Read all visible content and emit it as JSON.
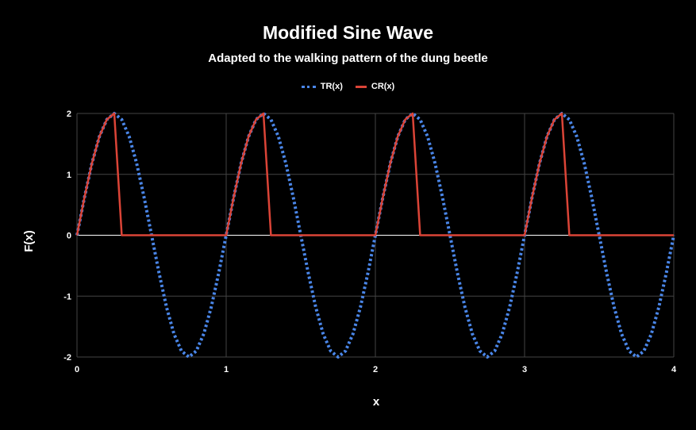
{
  "chart_data": {
    "type": "line",
    "title": "Modified Sine Wave",
    "subtitle": "Adapted to the walking pattern of the dung beetle",
    "xlabel": "x",
    "ylabel": "F(x)",
    "xlim": [
      0,
      4
    ],
    "ylim": [
      -2,
      2
    ],
    "x_ticks": [
      "0",
      "1",
      "2",
      "3",
      "4"
    ],
    "y_ticks": [
      "2",
      "1",
      "0",
      "-1",
      "-2"
    ],
    "grid": true,
    "legend_position": "top",
    "series": [
      {
        "name": "TR(x)",
        "style": "dotted",
        "color": "#4a86e8",
        "function": "2*sin(2*pi*x)",
        "x": [
          0,
          0.05,
          0.1,
          0.15,
          0.2,
          0.25,
          0.3,
          0.35,
          0.4,
          0.45,
          0.5,
          0.55,
          0.6,
          0.65,
          0.7,
          0.75,
          0.8,
          0.85,
          0.9,
          0.95,
          1.0,
          1.05,
          1.1,
          1.15,
          1.2,
          1.25,
          1.3,
          1.35,
          1.4,
          1.45,
          1.5,
          1.55,
          1.6,
          1.65,
          1.7,
          1.75,
          1.8,
          1.85,
          1.9,
          1.95,
          2.0,
          2.05,
          2.1,
          2.15,
          2.2,
          2.25,
          2.3,
          2.35,
          2.4,
          2.45,
          2.5,
          2.55,
          2.6,
          2.65,
          2.7,
          2.75,
          2.8,
          2.85,
          2.9,
          2.95,
          3.0,
          3.05,
          3.1,
          3.15,
          3.2,
          3.25,
          3.3,
          3.35,
          3.4,
          3.45,
          3.5,
          3.55,
          3.6,
          3.65,
          3.7,
          3.75,
          3.8,
          3.85,
          3.9,
          3.95,
          4.0
        ],
        "y": [
          0,
          0.62,
          1.18,
          1.62,
          1.9,
          2.0,
          1.9,
          1.62,
          1.18,
          0.62,
          0,
          -0.62,
          -1.18,
          -1.62,
          -1.9,
          -2.0,
          -1.9,
          -1.62,
          -1.18,
          -0.62,
          0,
          0.62,
          1.18,
          1.62,
          1.9,
          2.0,
          1.9,
          1.62,
          1.18,
          0.62,
          0,
          -0.62,
          -1.18,
          -1.62,
          -1.9,
          -2.0,
          -1.9,
          -1.62,
          -1.18,
          -0.62,
          0,
          0.62,
          1.18,
          1.62,
          1.9,
          2.0,
          1.9,
          1.62,
          1.18,
          0.62,
          0,
          -0.62,
          -1.18,
          -1.62,
          -1.9,
          -2.0,
          -1.9,
          -1.62,
          -1.18,
          -0.62,
          0,
          0.62,
          1.18,
          1.62,
          1.9,
          2.0,
          1.9,
          1.62,
          1.18,
          0.62,
          0,
          -0.62,
          -1.18,
          -1.62,
          -1.9,
          -2.0,
          -1.9,
          -1.62,
          -1.18,
          -0.62,
          0
        ]
      },
      {
        "name": "CR(x)",
        "style": "solid",
        "color": "#db4437",
        "x": [
          0,
          0.05,
          0.1,
          0.15,
          0.2,
          0.25,
          0.3,
          1.0,
          1.05,
          1.1,
          1.15,
          1.2,
          1.25,
          1.3,
          2.0,
          2.05,
          2.1,
          2.15,
          2.2,
          2.25,
          2.3,
          3.0,
          3.05,
          3.1,
          3.15,
          3.2,
          3.25,
          3.3,
          4.0
        ],
        "y": [
          0,
          0.62,
          1.18,
          1.62,
          1.9,
          2.0,
          0,
          0,
          0.62,
          1.18,
          1.62,
          1.9,
          2.0,
          0,
          0,
          0.62,
          1.18,
          1.62,
          1.9,
          2.0,
          0,
          0,
          0.62,
          1.18,
          1.62,
          1.9,
          2.0,
          0,
          0
        ]
      }
    ]
  }
}
